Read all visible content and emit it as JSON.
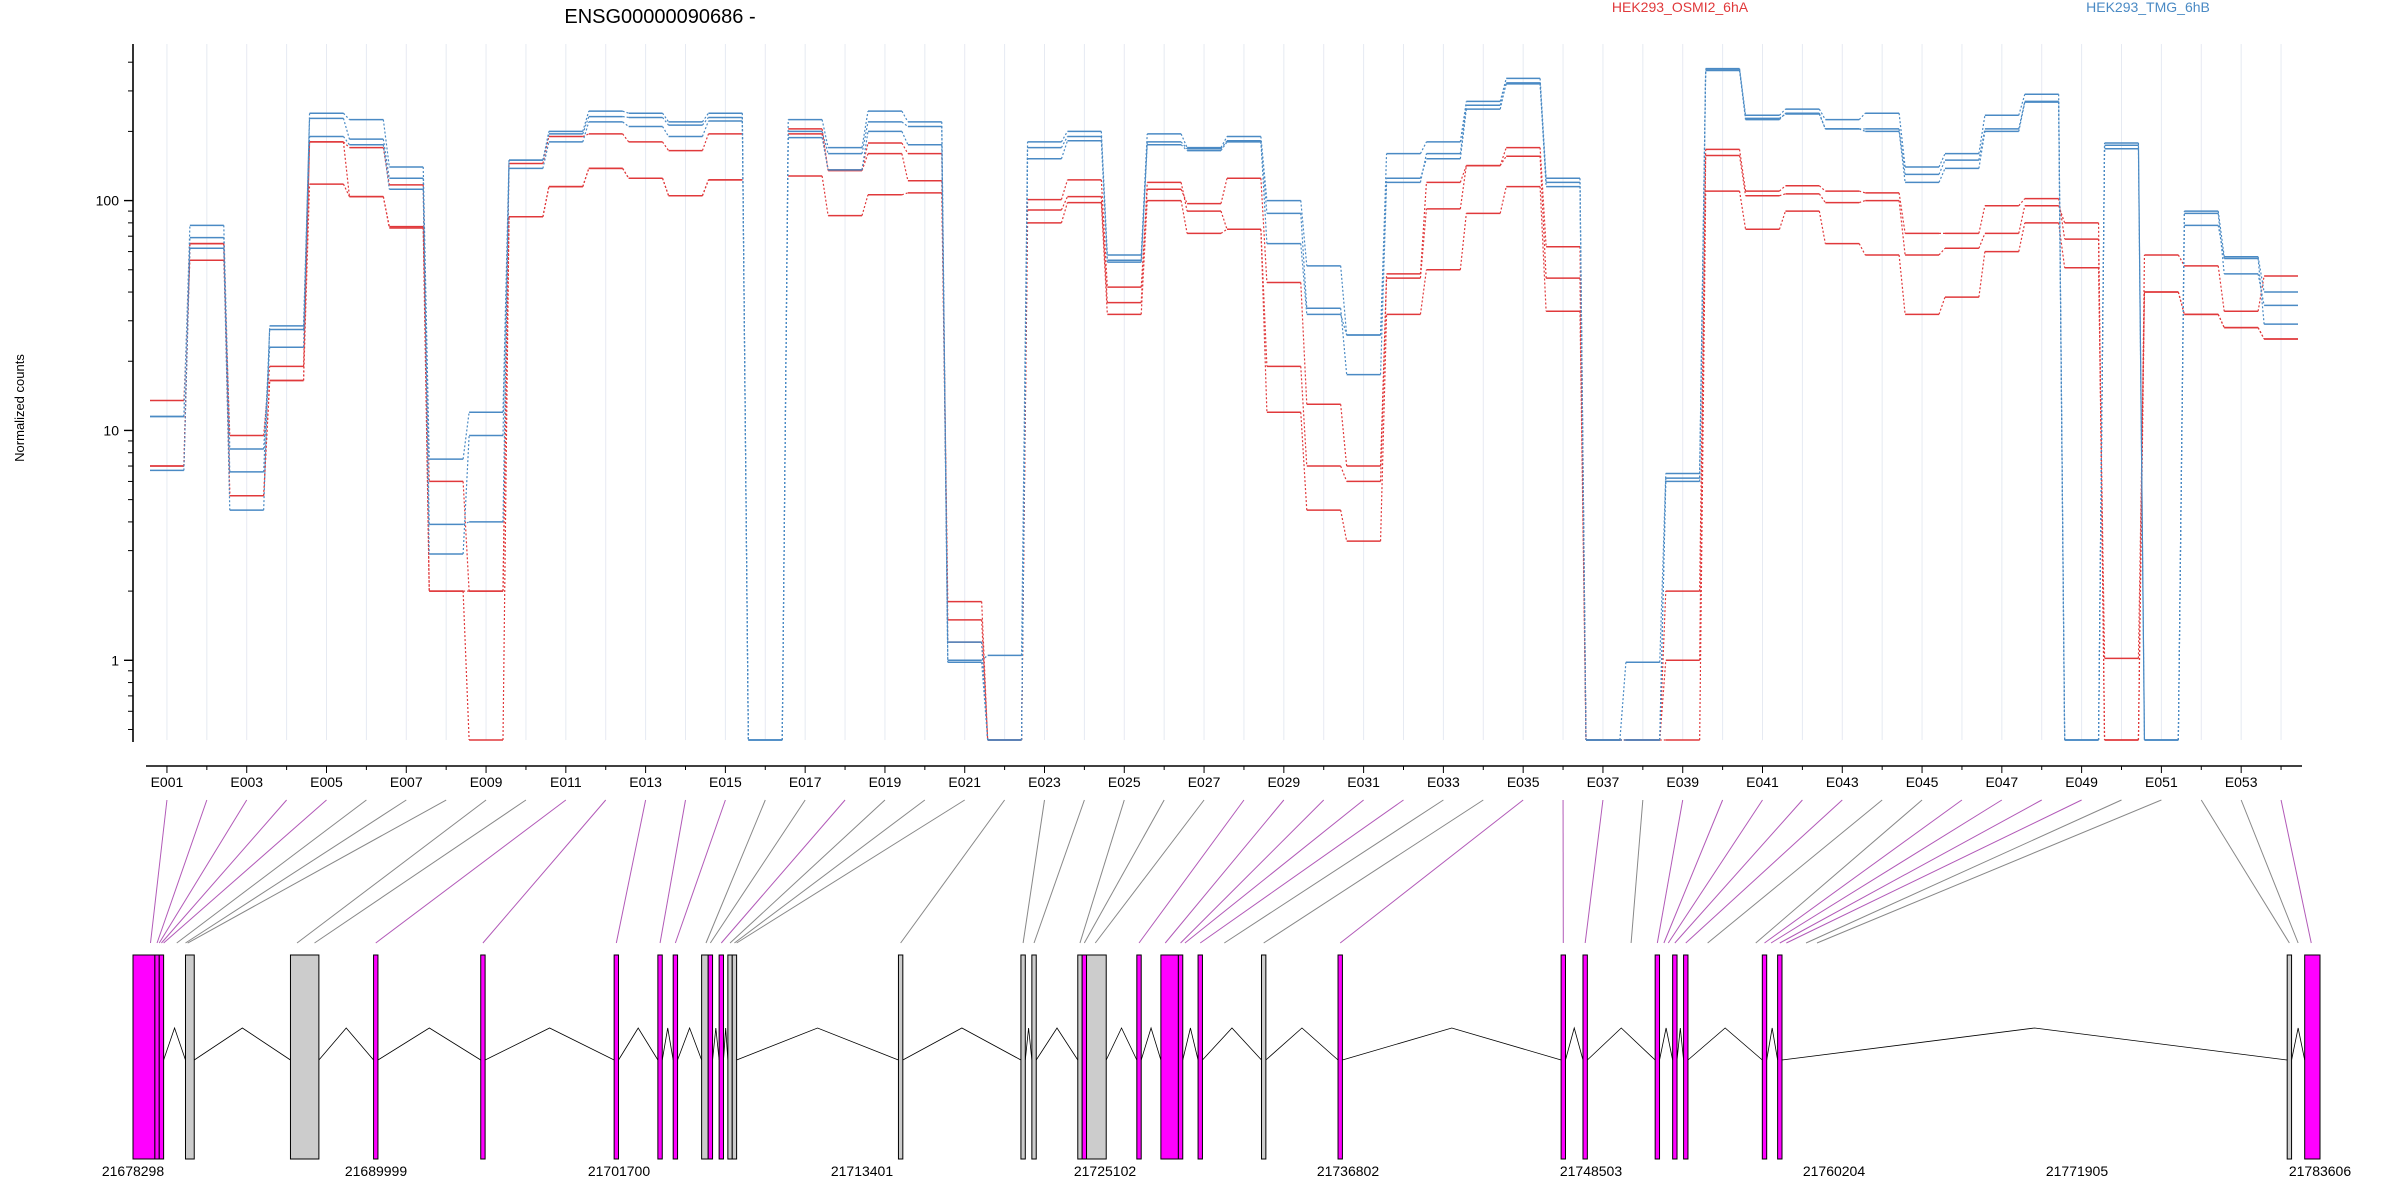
{
  "chart_data": {
    "type": "line",
    "title": "ENSG00000090686 -",
    "ylabel": "Normalized counts",
    "xlabel": "",
    "y_scale": "log",
    "ylim": [
      0.45,
      480
    ],
    "y_ticks": [
      1,
      10,
      100
    ],
    "y_tick_labels": [
      "1",
      "10",
      "100"
    ],
    "legend_placement": "top",
    "grid": "vertical",
    "colors": {
      "HEK293_OSMI2_6hA": "#e0393b",
      "HEK293_TMG_6hB": "#4a8ac4"
    },
    "exon_tick_labels": [
      "E001",
      "E003",
      "E005",
      "E007",
      "E009",
      "E011",
      "E013",
      "E015",
      "E017",
      "E019",
      "E021",
      "E023",
      "E025",
      "E027",
      "E029",
      "E031",
      "E033",
      "E035",
      "E037",
      "E039",
      "E041",
      "E043",
      "E045",
      "E047",
      "E049",
      "E051",
      "E053"
    ],
    "genome_tick_labels": [
      "21678298",
      "21689999",
      "21701700",
      "21713401",
      "21725102",
      "21736802",
      "21748503",
      "21760204",
      "21771905",
      "21783606"
    ],
    "genome_range": [
      21678298,
      21783606
    ],
    "exon_highlight_color": "#ff00ff",
    "exon_plain_color": "#cccccc",
    "series": [
      {
        "name": "HEK293_OSMI2_6hA",
        "values": [
          13.5,
          55,
          9.5,
          19,
          180,
          104,
          76,
          2,
          0.45,
          85,
          115,
          138,
          125,
          105,
          123,
          0,
          128,
          86,
          106,
          108,
          1.5,
          0.45,
          80,
          98,
          32,
          100,
          72,
          75,
          12,
          4.5,
          3.3,
          32,
          50,
          88,
          115,
          33,
          0.45,
          0.45,
          0.45,
          110,
          75,
          90,
          65,
          58,
          32,
          38,
          60,
          80,
          51,
          1.02,
          40,
          32,
          28,
          25
        ]
      },
      {
        "name": "HEK293_OSMI2_6hA",
        "values": [
          7,
          65,
          5.2,
          16.5,
          118,
          104,
          77,
          6,
          2,
          85,
          115,
          138,
          125,
          105,
          123,
          0,
          195,
          136,
          178,
          160,
          1.2,
          0.45,
          101,
          123,
          42,
          112,
          97,
          125,
          44,
          13,
          7,
          48,
          120,
          142,
          170,
          63,
          0.45,
          0.45,
          2,
          167,
          110,
          116,
          110,
          108,
          72,
          72,
          95,
          102,
          68,
          0.45,
          40,
          32,
          28,
          25
        ]
      },
      {
        "name": "HEK293_OSMI2_6hA",
        "values": [
          7,
          65,
          5.2,
          16.5,
          180,
          170,
          117,
          2,
          2,
          145,
          190,
          195,
          180,
          165,
          195,
          0,
          205,
          135,
          160,
          122,
          1.8,
          0.45,
          91,
          104,
          36,
          120,
          90,
          75,
          19,
          7,
          6,
          46,
          92,
          142,
          156,
          46,
          0.45,
          0.45,
          1,
          157,
          105,
          107,
          98,
          100,
          58,
          62,
          72,
          95,
          80,
          0.45,
          58,
          52,
          33,
          47
        ]
      },
      {
        "name": "HEK293_TMG_6hB",
        "values": [
          11.5,
          78,
          8.3,
          23,
          240,
          225,
          140,
          7.5,
          12,
          150,
          200,
          245,
          240,
          220,
          240,
          0.45,
          225,
          170,
          245,
          220,
          1,
          1.05,
          180,
          200,
          58,
          195,
          170,
          190,
          100,
          52,
          26,
          160,
          180,
          270,
          340,
          125,
          0.45,
          0.98,
          6.5,
          375,
          235,
          250,
          225,
          240,
          140,
          160,
          235,
          290,
          0.45,
          178,
          0.45,
          90,
          57,
          40
        ]
      },
      {
        "name": "HEK293_TMG_6hB",
        "values": [
          11.5,
          69,
          6.6,
          27.5,
          228,
          185,
          125,
          3.9,
          4,
          150,
          195,
          232,
          230,
          213,
          230,
          0.45,
          200,
          160,
          220,
          210,
          1.2,
          0.45,
          170,
          190,
          55,
          180,
          168,
          182,
          88,
          34,
          17.5,
          120,
          160,
          260,
          322,
          120,
          0.45,
          0.45,
          6.2,
          368,
          228,
          238,
          205,
          205,
          130,
          150,
          205,
          270,
          0.45,
          174,
          0.45,
          88,
          48,
          35
        ]
      },
      {
        "name": "HEK293_TMG_6hB",
        "values": [
          6.7,
          62,
          4.5,
          28.5,
          190,
          175,
          112,
          2.9,
          9.5,
          138,
          180,
          220,
          210,
          190,
          222,
          0.45,
          188,
          136,
          200,
          175,
          0.98,
          0.45,
          152,
          182,
          54,
          175,
          165,
          180,
          65,
          32,
          26,
          125,
          152,
          250,
          325,
          115,
          0.45,
          0.45,
          6,
          370,
          225,
          240,
          205,
          200,
          120,
          138,
          200,
          268,
          0.45,
          168,
          0.45,
          78,
          56,
          29
        ]
      }
    ]
  }
}
